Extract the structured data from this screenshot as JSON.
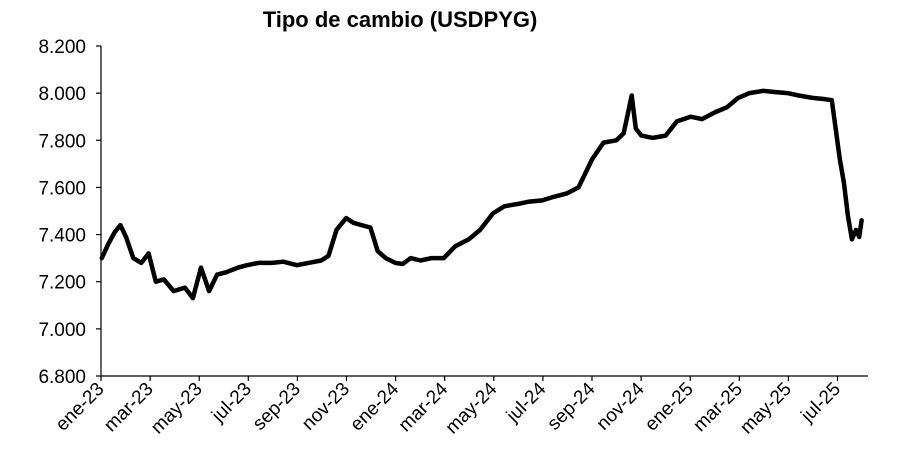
{
  "chart_data": {
    "type": "line",
    "title": "Tipo de cambio (USDPYG)",
    "xlabel": "",
    "ylabel": "",
    "ylim": [
      6800,
      8200
    ],
    "y_ticks": [
      6800,
      7000,
      7200,
      7400,
      7600,
      7800,
      8000,
      8200
    ],
    "y_tick_labels": [
      "6.800",
      "7.000",
      "7.200",
      "7.400",
      "7.600",
      "7.800",
      "8.000",
      "8.200"
    ],
    "x_tick_labels": [
      "ene-23",
      "mar-23",
      "may-23",
      "jul-23",
      "sep-23",
      "nov-23",
      "ene-24",
      "mar-24",
      "may-24",
      "jul-24",
      "sep-24",
      "nov-24",
      "ene-25",
      "mar-25",
      "may-25",
      "jul-25"
    ],
    "grid": false,
    "legend": "none",
    "line_color": "#000000",
    "series": [
      {
        "x": [
          "2023-01-02",
          "2023-01-10",
          "2023-01-18",
          "2023-01-25",
          "2023-02-01",
          "2023-02-10",
          "2023-02-20",
          "2023-03-01",
          "2023-03-10",
          "2023-03-20",
          "2023-04-01",
          "2023-04-15",
          "2023-04-25",
          "2023-05-05",
          "2023-05-15",
          "2023-05-25",
          "2023-06-05",
          "2023-06-20",
          "2023-07-01",
          "2023-07-15",
          "2023-08-01",
          "2023-08-15",
          "2023-09-01",
          "2023-09-15",
          "2023-10-01",
          "2023-10-10",
          "2023-10-20",
          "2023-11-01",
          "2023-11-10",
          "2023-11-20",
          "2023-12-01",
          "2023-12-10",
          "2023-12-20",
          "2024-01-01",
          "2024-01-10",
          "2024-01-20",
          "2024-02-01",
          "2024-02-15",
          "2024-03-01",
          "2024-03-15",
          "2024-04-01",
          "2024-04-15",
          "2024-05-01",
          "2024-05-15",
          "2024-06-01",
          "2024-06-15",
          "2024-07-01",
          "2024-07-15",
          "2024-08-01",
          "2024-08-15",
          "2024-09-01",
          "2024-09-15",
          "2024-10-01",
          "2024-10-10",
          "2024-10-20",
          "2024-10-25",
          "2024-11-01",
          "2024-11-15",
          "2024-12-01",
          "2024-12-15",
          "2025-01-01",
          "2025-01-15",
          "2025-02-01",
          "2025-02-15",
          "2025-03-01",
          "2025-03-15",
          "2025-04-01",
          "2025-04-15",
          "2025-05-01",
          "2025-05-15",
          "2025-06-01",
          "2025-06-15",
          "2025-06-25",
          "2025-07-01",
          "2025-07-05",
          "2025-07-10",
          "2025-07-15",
          "2025-07-20",
          "2025-07-25",
          "2025-07-29",
          "2025-08-01"
        ],
        "values": [
          7300,
          7360,
          7410,
          7440,
          7390,
          7300,
          7280,
          7320,
          7200,
          7210,
          7160,
          7175,
          7130,
          7260,
          7160,
          7230,
          7240,
          7260,
          7270,
          7280,
          7280,
          7285,
          7270,
          7280,
          7290,
          7310,
          7420,
          7470,
          7450,
          7440,
          7430,
          7330,
          7300,
          7280,
          7275,
          7300,
          7290,
          7300,
          7300,
          7350,
          7380,
          7420,
          7490,
          7520,
          7530,
          7540,
          7545,
          7560,
          7575,
          7600,
          7720,
          7790,
          7800,
          7830,
          7990,
          7850,
          7820,
          7810,
          7820,
          7880,
          7900,
          7890,
          7920,
          7940,
          7980,
          8000,
          8010,
          8005,
          8000,
          7990,
          7980,
          7975,
          7970,
          7820,
          7720,
          7620,
          7480,
          7380,
          7420,
          7390,
          7460
        ]
      }
    ]
  }
}
